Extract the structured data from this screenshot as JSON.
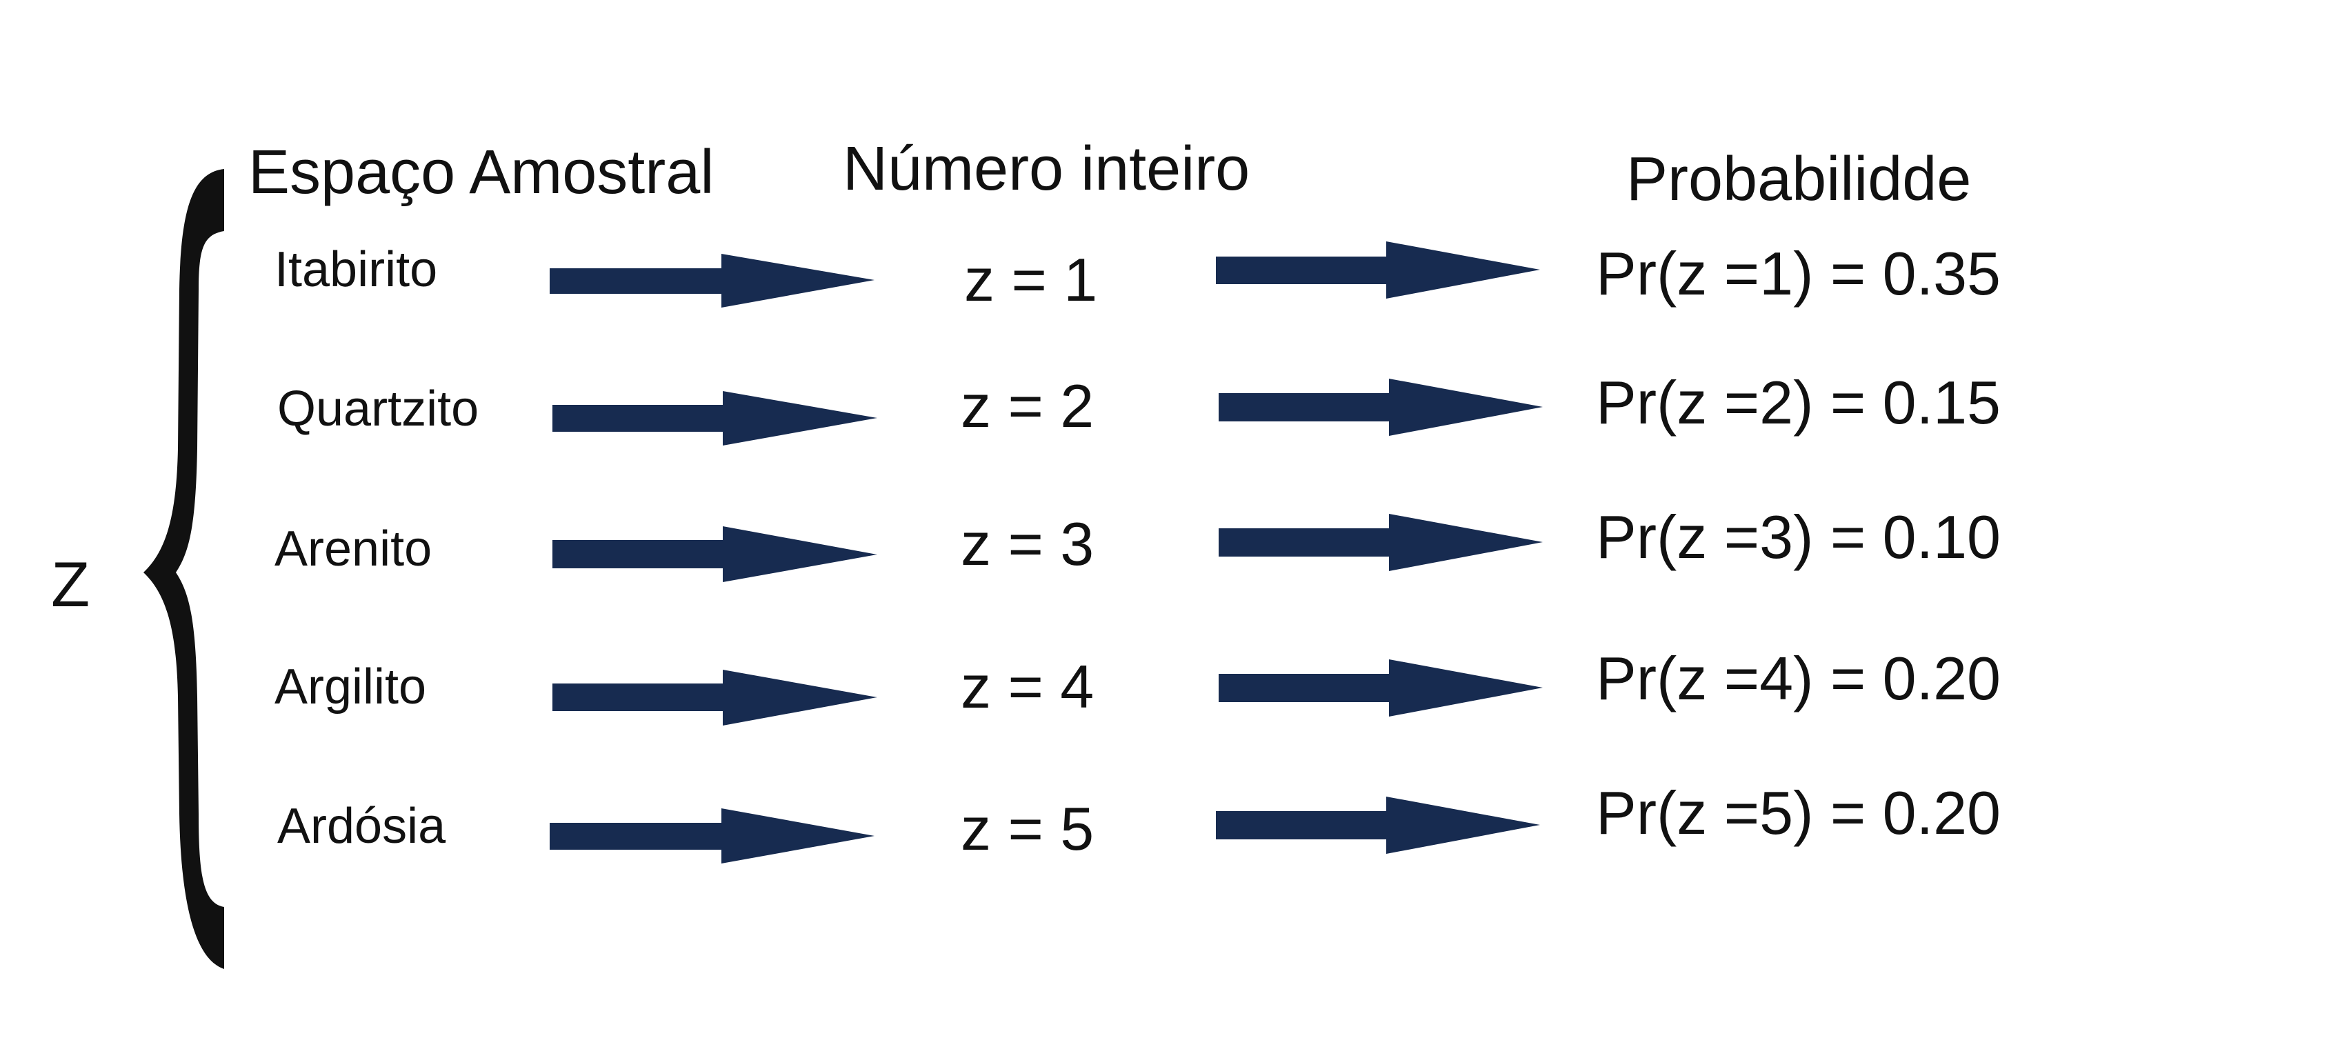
{
  "variable": "Z",
  "headers": {
    "sample_space": "Espaço Amostral",
    "integer": "Número inteiro",
    "probability": "Probabilidde"
  },
  "rows": [
    {
      "rock": "Itabirito",
      "z": "z = 1",
      "prob": "Pr(z =1) = 0.35"
    },
    {
      "rock": "Quartzito",
      "z": "z = 2",
      "prob": "Pr(z =2) = 0.15"
    },
    {
      "rock": "Arenito",
      "z": "z = 3",
      "prob": "Pr(z =3) = 0.10"
    },
    {
      "rock": "Argilito",
      "z": "z = 4",
      "prob": "Pr(z =4) = 0.20"
    },
    {
      "rock": "Ardósia",
      "z": "z = 5",
      "prob": "Pr(z =5) = 0.20"
    }
  ],
  "colors": {
    "arrow": "#172b50",
    "brace": "#111111",
    "text": "#111111"
  }
}
